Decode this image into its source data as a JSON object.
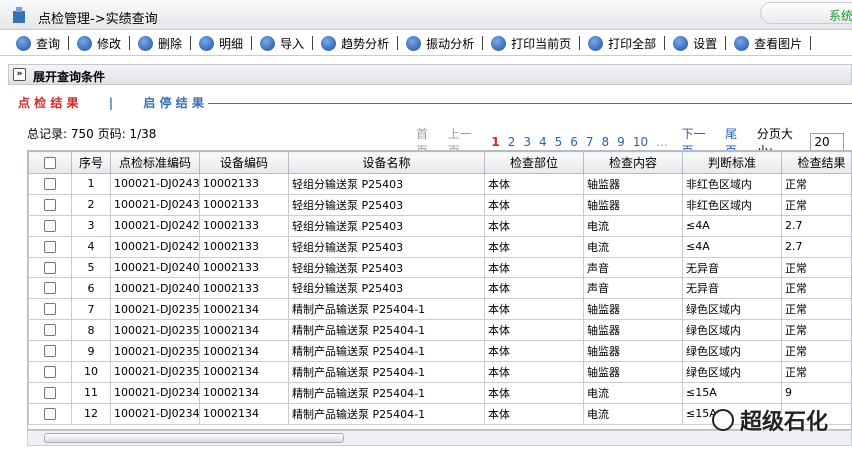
{
  "header": {
    "title": "点检管理->实绩查询",
    "system": "系统"
  },
  "toolbar": [
    "查询",
    "修改",
    "删除",
    "明细",
    "导入",
    "趋势分析",
    "振动分析",
    "打印当前页",
    "打印全部",
    "设置",
    "查看图片"
  ],
  "query_toggle": "展开查询条件",
  "tabs": [
    "点 检 结 果",
    "启 停 结 果"
  ],
  "tab_separator": "|",
  "summary": "总记录: 750 页码: 1/38",
  "pagination": {
    "first": "首页",
    "prev": "上一页",
    "pages": [
      "1",
      "2",
      "3",
      "4",
      "5",
      "6",
      "7",
      "8",
      "9",
      "10"
    ],
    "more": "...",
    "next": "下一页",
    "last": "尾页",
    "page_size_label": "分页大小:",
    "page_size": "20"
  },
  "table": {
    "columns": [
      "序号",
      "点检标准编码",
      "设备编码",
      "设备名称",
      "检查部位",
      "检查内容",
      "判断标准",
      "检查结果"
    ],
    "rows": [
      [
        "1",
        "100021-DJ0243",
        "10002133",
        "轻组分输送泵 P25403",
        "本体",
        "轴监器",
        "非红色区域内",
        "正常"
      ],
      [
        "2",
        "100021-DJ0243",
        "10002133",
        "轻组分输送泵 P25403",
        "本体",
        "轴监器",
        "非红色区域内",
        "正常"
      ],
      [
        "3",
        "100021-DJ0242",
        "10002133",
        "轻组分输送泵 P25403",
        "本体",
        "电流",
        "≤4A",
        "2.7"
      ],
      [
        "4",
        "100021-DJ0242",
        "10002133",
        "轻组分输送泵 P25403",
        "本体",
        "电流",
        "≤4A",
        "2.7"
      ],
      [
        "5",
        "100021-DJ0240",
        "10002133",
        "轻组分输送泵 P25403",
        "本体",
        "声音",
        "无异音",
        "正常"
      ],
      [
        "6",
        "100021-DJ0240",
        "10002133",
        "轻组分输送泵 P25403",
        "本体",
        "声音",
        "无异音",
        "正常"
      ],
      [
        "7",
        "100021-DJ0235",
        "10002134",
        "精制产品输送泵 P25404-1",
        "本体",
        "轴监器",
        "绿色区域内",
        "正常"
      ],
      [
        "8",
        "100021-DJ0235",
        "10002134",
        "精制产品输送泵 P25404-1",
        "本体",
        "轴监器",
        "绿色区域内",
        "正常"
      ],
      [
        "9",
        "100021-DJ0235",
        "10002134",
        "精制产品输送泵 P25404-1",
        "本体",
        "轴监器",
        "绿色区域内",
        "正常"
      ],
      [
        "10",
        "100021-DJ0235",
        "10002134",
        "精制产品输送泵 P25404-1",
        "本体",
        "轴监器",
        "绿色区域内",
        "正常"
      ],
      [
        "11",
        "100021-DJ0234",
        "10002134",
        "精制产品输送泵 P25404-1",
        "本体",
        "电流",
        "≤15A",
        "9"
      ],
      [
        "12",
        "100021-DJ0234",
        "10002134",
        "精制产品输送泵 P25404-1",
        "本体",
        "电流",
        "≤15A",
        null
      ]
    ]
  },
  "watermark": "超级石化"
}
